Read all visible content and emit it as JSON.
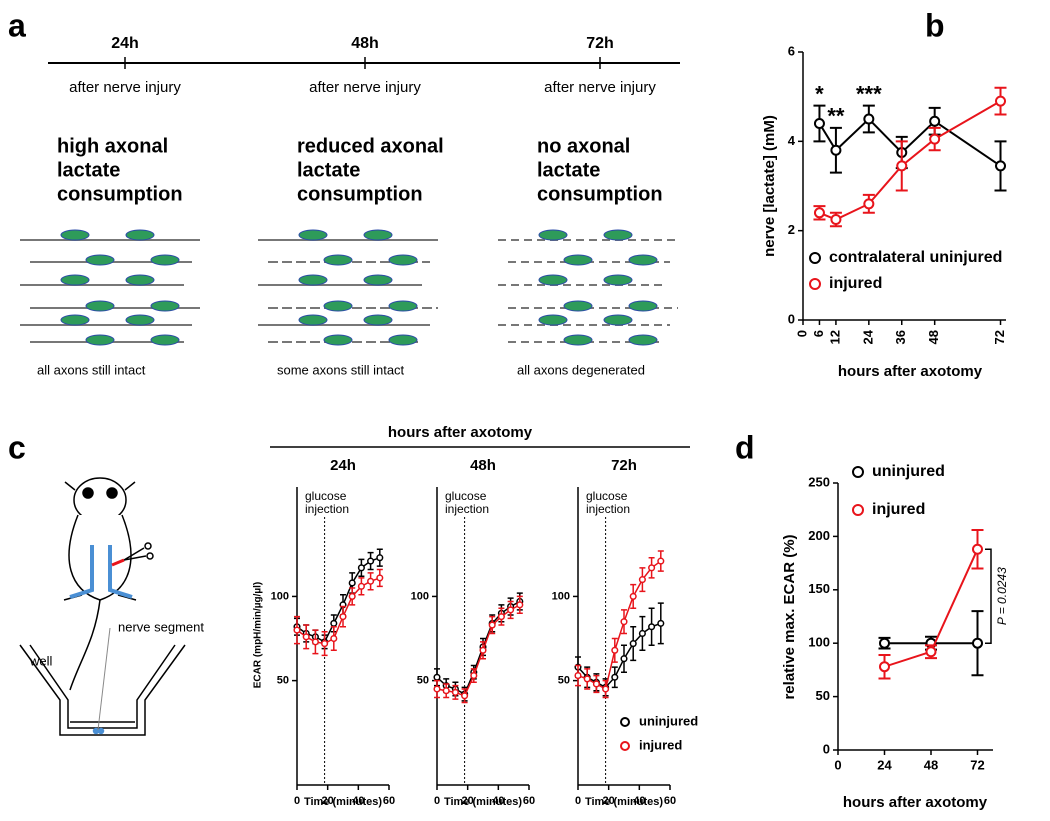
{
  "panel_labels": [
    "a",
    "b",
    "c",
    "d"
  ],
  "panel_a": {
    "timeline": [
      {
        "time": "24h",
        "caption": "after nerve injury"
      },
      {
        "time": "48h",
        "caption": "after nerve injury"
      },
      {
        "time": "72h",
        "caption": "after nerve injury"
      }
    ],
    "headings": [
      [
        "high axonal",
        "lactate",
        "consumption"
      ],
      [
        "reduced axonal",
        "lactate",
        "consumption"
      ],
      [
        "no axonal",
        "lactate",
        "consumption"
      ]
    ],
    "captions": [
      "all axons still intact",
      "some axons still intact",
      "all axons degenerated"
    ]
  },
  "panel_c": {
    "header": "hours after axotomy",
    "labels": [
      "nerve segment",
      "well"
    ]
  },
  "chart_data": [
    {
      "type": "line",
      "xlabel": "hours after axotomy",
      "ylabel": "nerve [lactate] (mM)",
      "x": [
        6,
        12,
        24,
        36,
        48,
        72
      ],
      "xlim": [
        0,
        74
      ],
      "xticks": [
        0,
        6,
        12,
        24,
        36,
        48,
        72
      ],
      "ylim": [
        0,
        6
      ],
      "yticks": [
        0,
        2,
        4,
        6
      ],
      "annotations": [
        "*",
        "**",
        "***"
      ],
      "series": [
        {
          "name": "contralateral uninjured",
          "color": "#000000",
          "values": [
            4.4,
            3.8,
            4.5,
            3.75,
            4.45,
            3.45
          ],
          "errors": [
            0.4,
            0.5,
            0.3,
            0.35,
            0.3,
            0.55
          ]
        },
        {
          "name": "injured",
          "color": "#e8141b",
          "values": [
            2.4,
            2.25,
            2.6,
            3.45,
            4.05,
            4.9
          ],
          "errors": [
            0.15,
            0.15,
            0.2,
            0.55,
            0.25,
            0.3
          ]
        }
      ]
    },
    {
      "type": "line",
      "title": "24h",
      "annotation": [
        "glucose",
        "injection"
      ],
      "vline": 18,
      "xlabel": "Time (minutes)",
      "ylabel": "ECAR (mpH/min/µg/µl)",
      "x": [
        0,
        6,
        12,
        18,
        24,
        30,
        36,
        42,
        48,
        54
      ],
      "xlim": [
        0,
        60
      ],
      "xticks": [
        0,
        20,
        40,
        60
      ],
      "ylim": [
        -12,
        165
      ],
      "yticks": [
        50,
        100
      ],
      "series": [
        {
          "color": "#000000",
          "values": [
            82,
            78,
            76,
            73,
            84,
            95,
            108,
            117,
            121,
            123
          ],
          "errors": [
            5,
            5,
            4,
            4,
            5,
            6,
            6,
            5,
            5,
            5
          ]
        },
        {
          "color": "#e8141b",
          "values": [
            80,
            76,
            73,
            72,
            75,
            88,
            100,
            106,
            109,
            111
          ],
          "errors": [
            8,
            7,
            7,
            7,
            7,
            6,
            5,
            5,
            5,
            5
          ]
        }
      ]
    },
    {
      "type": "line",
      "title": "48h",
      "annotation": [
        "glucose",
        "injection"
      ],
      "vline": 18,
      "xlabel": "Time (minutes)",
      "x": [
        0,
        6,
        12,
        18,
        24,
        30,
        36,
        42,
        48,
        54
      ],
      "xlim": [
        0,
        60
      ],
      "xticks": [
        0,
        20,
        40,
        60
      ],
      "ylim": [
        -12,
        165
      ],
      "yticks": [
        50,
        100
      ],
      "series": [
        {
          "color": "#000000",
          "values": [
            52,
            47,
            45,
            42,
            55,
            70,
            84,
            90,
            94,
            97
          ],
          "errors": [
            5,
            4,
            4,
            4,
            4,
            5,
            5,
            5,
            5,
            5
          ]
        },
        {
          "color": "#e8141b",
          "values": [
            45,
            44,
            43,
            41,
            53,
            68,
            83,
            88,
            92,
            95
          ],
          "errors": [
            5,
            4,
            4,
            4,
            4,
            5,
            5,
            5,
            5,
            5
          ]
        }
      ]
    },
    {
      "type": "line",
      "title": "72h",
      "annotation": [
        "glucose",
        "injection"
      ],
      "vline": 18,
      "xlabel": "Time (minutes)",
      "x": [
        0,
        6,
        12,
        18,
        24,
        30,
        36,
        42,
        48,
        54
      ],
      "xlim": [
        0,
        60
      ],
      "xticks": [
        0,
        20,
        40,
        60
      ],
      "ylim": [
        -12,
        165
      ],
      "yticks": [
        50,
        100
      ],
      "series": [
        {
          "name": "uninjured",
          "color": "#000000",
          "values": [
            58,
            52,
            49,
            46,
            52,
            63,
            72,
            78,
            82,
            84
          ],
          "errors": [
            6,
            6,
            5,
            5,
            6,
            8,
            10,
            10,
            11,
            12
          ]
        },
        {
          "name": "injured",
          "color": "#e8141b",
          "values": [
            53,
            51,
            48,
            45,
            68,
            85,
            100,
            110,
            117,
            121
          ],
          "errors": [
            6,
            6,
            5,
            5,
            7,
            7,
            7,
            7,
            6,
            6
          ]
        }
      ]
    },
    {
      "type": "line",
      "xlabel": "hours after axotomy",
      "ylabel": "relative max. ECAR (%)",
      "annotation": "P = 0.0243",
      "x": [
        24,
        48,
        72
      ],
      "xlim": [
        0,
        80
      ],
      "xticks": [
        0,
        24,
        48,
        72
      ],
      "ylim": [
        0,
        250
      ],
      "yticks": [
        0,
        50,
        100,
        150,
        200,
        250
      ],
      "series": [
        {
          "name": "uninjured",
          "color": "#000000",
          "values": [
            100,
            100,
            100
          ],
          "errors": [
            5,
            6,
            30
          ]
        },
        {
          "name": "injured",
          "color": "#e8141b",
          "values": [
            78,
            92,
            188
          ],
          "errors": [
            11,
            6,
            18
          ]
        }
      ]
    }
  ]
}
